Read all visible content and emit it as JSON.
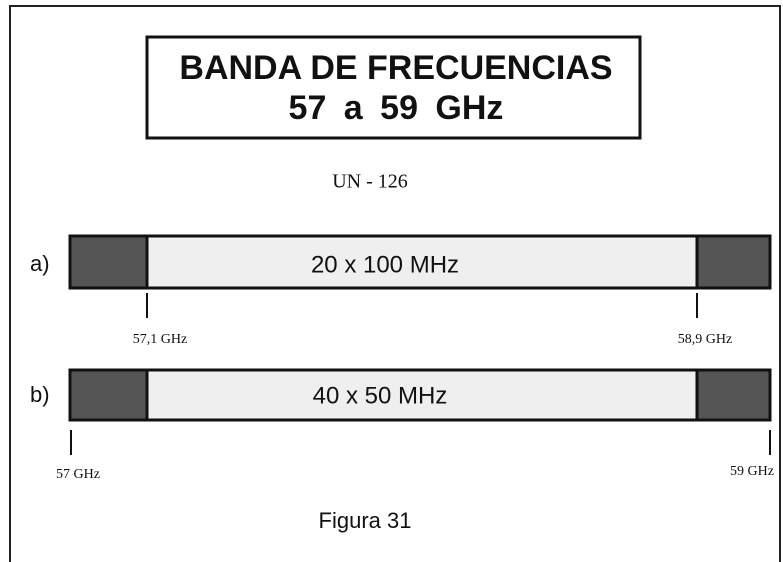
{
  "header": {
    "title": [
      "BANDA DE FRECUENCIAS",
      "57 a 59 GHz"
    ],
    "subtitle": "UN - 126"
  },
  "bands": [
    {
      "label": "a)",
      "text": "20 x 100  MHz",
      "markers": [
        "57,1 GHz",
        "58,9 GHz"
      ]
    },
    {
      "label": "b)",
      "text": "40 x 50  MHz",
      "markers": [
        "57 GHz",
        "59 GHz"
      ]
    }
  ],
  "caption": "Figura 31"
}
